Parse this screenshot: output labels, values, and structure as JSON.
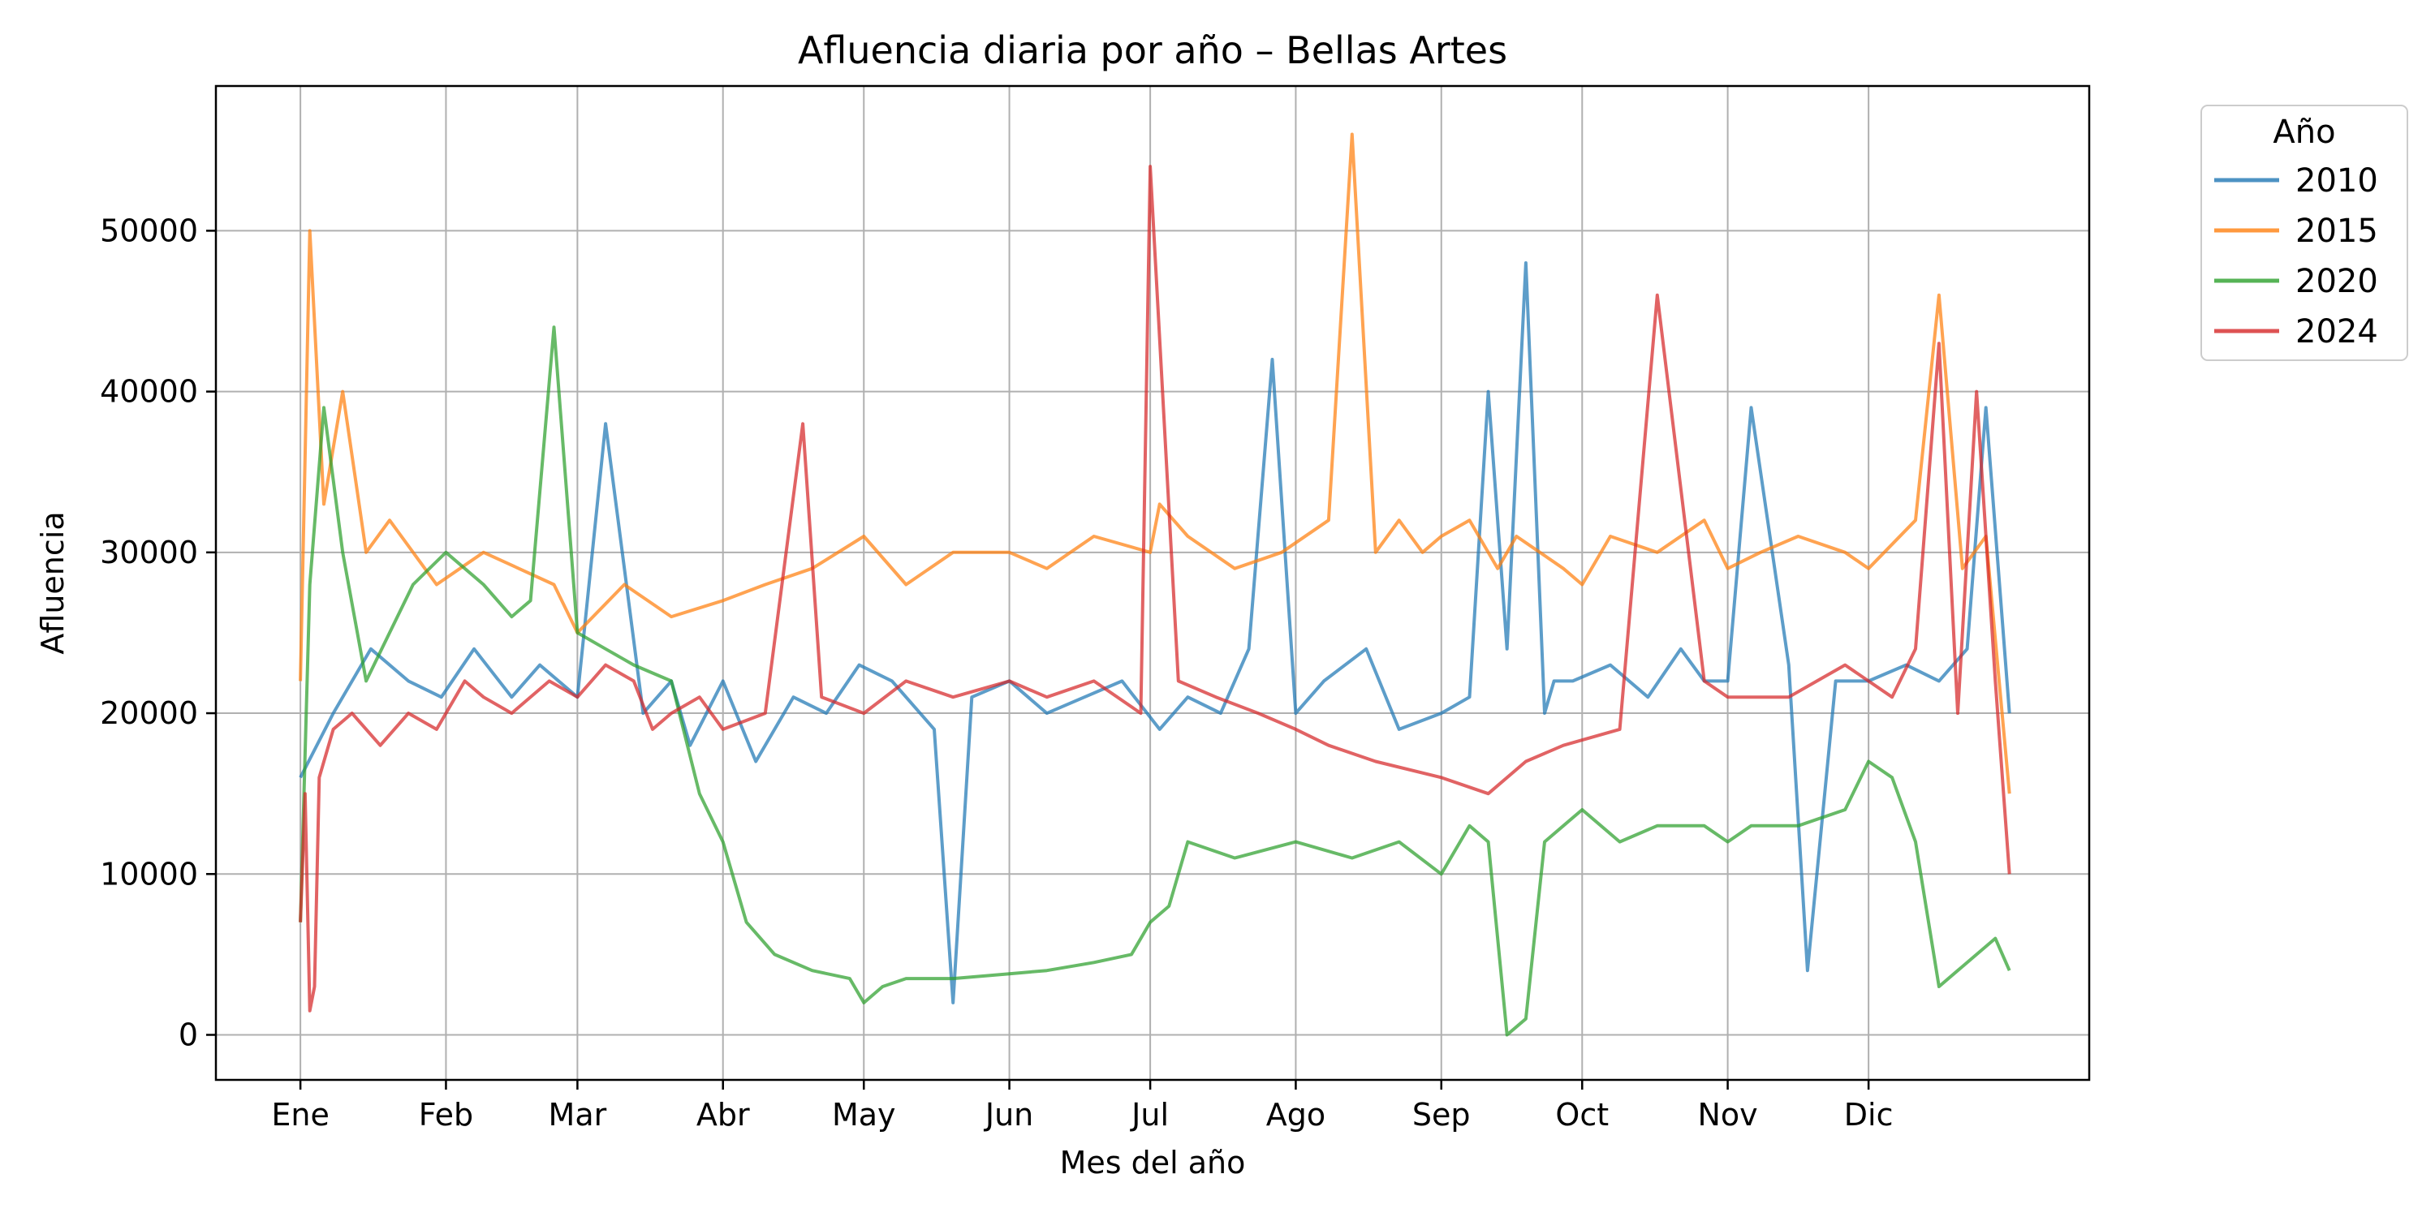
{
  "chart_data": {
    "type": "line",
    "title": "Afluencia diaria por año – Bellas Artes",
    "xlabel": "Mes del año",
    "ylabel": "Afluencia",
    "x_tick_labels": [
      "Ene",
      "Feb",
      "Mar",
      "Abr",
      "May",
      "Jun",
      "Jul",
      "Ago",
      "Sep",
      "Oct",
      "Nov",
      "Dic"
    ],
    "x_tick_days": [
      1,
      32,
      60,
      91,
      121,
      152,
      182,
      213,
      244,
      274,
      305,
      335
    ],
    "xlim": [
      -17,
      382
    ],
    "y_ticks": [
      0,
      10000,
      20000,
      30000,
      40000,
      50000
    ],
    "y_tick_labels": [
      "0",
      "10000",
      "20000",
      "30000",
      "40000",
      "50000"
    ],
    "ylim": [
      -2800,
      59000
    ],
    "grid": true,
    "legend": {
      "title": "Año",
      "position": "outside-top-right"
    },
    "series": [
      {
        "name": "2010",
        "color": "#1f77b4",
        "x": [
          1,
          8,
          16,
          24,
          31,
          38,
          46,
          52,
          60,
          66,
          74,
          80,
          84,
          91,
          98,
          106,
          113,
          120,
          127,
          136,
          140,
          144,
          152,
          160,
          168,
          176,
          184,
          190,
          197,
          203,
          208,
          213,
          219,
          228,
          235,
          244,
          250,
          254,
          258,
          262,
          266,
          268,
          272,
          280,
          288,
          295,
          300,
          305,
          310,
          318,
          322,
          328,
          335,
          343,
          350,
          356,
          360,
          365
        ],
        "y": [
          16000,
          20000,
          24000,
          22000,
          21000,
          24000,
          21000,
          23000,
          21000,
          38000,
          20000,
          22000,
          18000,
          22000,
          17000,
          21000,
          20000,
          23000,
          22000,
          19000,
          2000,
          21000,
          22000,
          20000,
          21000,
          22000,
          19000,
          21000,
          20000,
          24000,
          42000,
          20000,
          22000,
          24000,
          19000,
          20000,
          21000,
          40000,
          24000,
          48000,
          20000,
          22000,
          22000,
          23000,
          21000,
          24000,
          22000,
          22000,
          39000,
          23000,
          4000,
          22000,
          22000,
          23000,
          22000,
          24000,
          39000,
          20000
        ]
      },
      {
        "name": "2015",
        "color": "#ff7f0e",
        "x": [
          1,
          3,
          6,
          10,
          15,
          20,
          30,
          40,
          55,
          60,
          70,
          80,
          91,
          100,
          110,
          121,
          130,
          140,
          152,
          160,
          170,
          182,
          184,
          190,
          200,
          210,
          220,
          225,
          230,
          235,
          240,
          244,
          250,
          256,
          260,
          265,
          270,
          274,
          280,
          290,
          300,
          305,
          312,
          320,
          330,
          335,
          345,
          350,
          355,
          360,
          365
        ],
        "y": [
          22000,
          50000,
          33000,
          40000,
          30000,
          32000,
          28000,
          30000,
          28000,
          25000,
          28000,
          26000,
          27000,
          28000,
          29000,
          31000,
          28000,
          30000,
          30000,
          29000,
          31000,
          30000,
          33000,
          31000,
          29000,
          30000,
          32000,
          56000,
          30000,
          32000,
          30000,
          31000,
          32000,
          29000,
          31000,
          30000,
          29000,
          28000,
          31000,
          30000,
          32000,
          29000,
          30000,
          31000,
          30000,
          29000,
          32000,
          46000,
          29000,
          31000,
          15000
        ]
      },
      {
        "name": "2020",
        "color": "#2ca02c",
        "x": [
          1,
          3,
          6,
          10,
          15,
          20,
          25,
          32,
          40,
          46,
          50,
          55,
          60,
          66,
          72,
          80,
          86,
          91,
          96,
          102,
          110,
          118,
          121,
          125,
          130,
          140,
          152,
          160,
          170,
          178,
          182,
          186,
          190,
          200,
          213,
          225,
          235,
          244,
          250,
          254,
          258,
          262,
          266,
          270,
          274,
          282,
          290,
          300,
          305,
          310,
          320,
          330,
          335,
          340,
          345,
          350,
          354,
          358,
          362,
          365
        ],
        "y": [
          7000,
          28000,
          39000,
          30000,
          22000,
          25000,
          28000,
          30000,
          28000,
          26000,
          27000,
          44000,
          25000,
          24000,
          23000,
          22000,
          15000,
          12000,
          7000,
          5000,
          4000,
          3500,
          2000,
          3000,
          3500,
          3500,
          3800,
          4000,
          4500,
          5000,
          7000,
          8000,
          12000,
          11000,
          12000,
          11000,
          12000,
          10000,
          13000,
          12000,
          0,
          1000,
          12000,
          13000,
          14000,
          12000,
          13000,
          13000,
          12000,
          13000,
          13000,
          14000,
          17000,
          16000,
          12000,
          3000,
          4000,
          5000,
          6000,
          4000
        ]
      },
      {
        "name": "2024",
        "color": "#d62728",
        "x": [
          1,
          2,
          3,
          4,
          5,
          8,
          12,
          18,
          24,
          30,
          36,
          40,
          46,
          54,
          60,
          66,
          72,
          76,
          80,
          86,
          91,
          100,
          108,
          112,
          121,
          130,
          140,
          152,
          160,
          170,
          180,
          182,
          188,
          196,
          205,
          213,
          220,
          230,
          244,
          254,
          262,
          270,
          282,
          290,
          300,
          305,
          318,
          324,
          330,
          335,
          340,
          345,
          350,
          354,
          358,
          362,
          365
        ],
        "y": [
          7000,
          15000,
          1500,
          3000,
          16000,
          19000,
          20000,
          18000,
          20000,
          19000,
          22000,
          21000,
          20000,
          22000,
          21000,
          23000,
          22000,
          19000,
          20000,
          21000,
          19000,
          20000,
          38000,
          21000,
          20000,
          22000,
          21000,
          22000,
          21000,
          22000,
          20000,
          54000,
          22000,
          21000,
          20000,
          19000,
          18000,
          17000,
          16000,
          15000,
          17000,
          18000,
          19000,
          46000,
          22000,
          21000,
          21000,
          22000,
          23000,
          22000,
          21000,
          24000,
          43000,
          20000,
          40000,
          22000,
          10000
        ]
      }
    ]
  }
}
